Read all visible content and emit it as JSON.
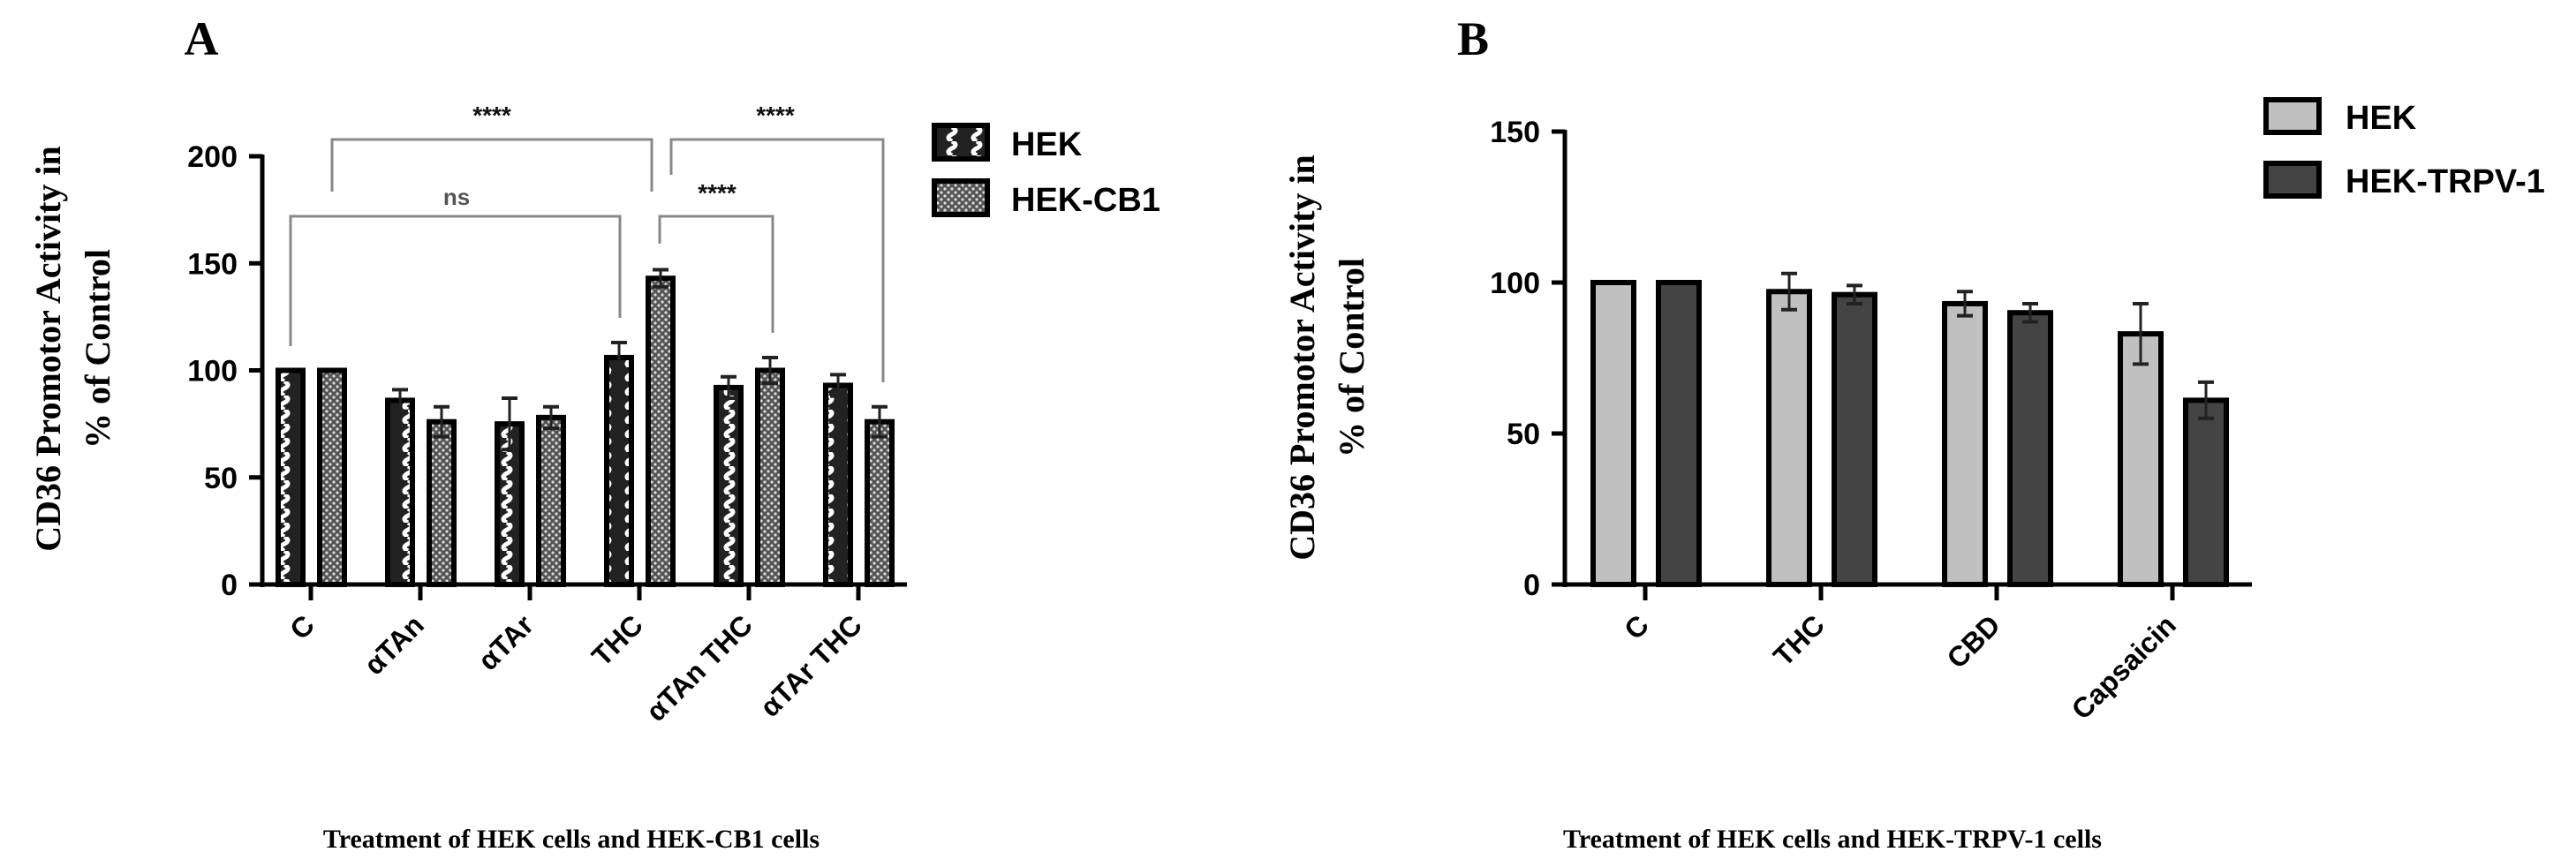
{
  "chart_data": [
    {
      "type": "bar",
      "panel_label": "A",
      "title": "",
      "ylabel_line1": "CD36 Promotor Activity in",
      "ylabel_line2": "% of Control",
      "xlabel": "Treatment of HEK cells and HEK-CB1 cells",
      "ylim": [
        0,
        200
      ],
      "yticks": [
        "0",
        "50",
        "100",
        "150",
        "200"
      ],
      "categories": [
        "C",
        "αTAn",
        "αTAr",
        "THC",
        "αTAn THC",
        "αTAr THC"
      ],
      "series": [
        {
          "name": "HEK",
          "values": [
            100,
            86,
            75,
            106,
            92,
            93
          ],
          "errors": [
            0,
            5,
            12,
            7,
            5,
            5
          ]
        },
        {
          "name": "HEK-CB1",
          "values": [
            100,
            76,
            78,
            143,
            100,
            76
          ],
          "errors": [
            0,
            7,
            5,
            4,
            6,
            7
          ]
        }
      ],
      "significance": [
        {
          "label": "****",
          "from": [
            0,
            1
          ],
          "to": [
            3,
            0
          ]
        },
        {
          "label": "ns",
          "from": [
            0,
            0
          ],
          "to": [
            3,
            0
          ]
        },
        {
          "label": "****",
          "from": [
            3,
            1
          ],
          "to": [
            5,
            1
          ]
        },
        {
          "label": "****",
          "from": [
            3,
            1
          ],
          "to": [
            4,
            1
          ]
        }
      ],
      "legend_position": "top-right",
      "grid": false
    },
    {
      "type": "bar",
      "panel_label": "B",
      "title": "",
      "ylabel_line1": "CD36 Promotor Activity in",
      "ylabel_line2": "% of Control",
      "xlabel": "Treatment of HEK cells and HEK-TRPV-1 cells",
      "ylim": [
        0,
        150
      ],
      "yticks": [
        "0",
        "50",
        "100",
        "150"
      ],
      "categories": [
        "C",
        "THC",
        "CBD",
        "Capsaicin"
      ],
      "series": [
        {
          "name": "HEK",
          "values": [
            100,
            97,
            93,
            83
          ],
          "errors": [
            0,
            6,
            4,
            10
          ],
          "color": "#c0c0c0"
        },
        {
          "name": "HEK-TRPV-1",
          "values": [
            100,
            96,
            90,
            61
          ],
          "errors": [
            0,
            3,
            3,
            6
          ],
          "color": "#444444"
        }
      ],
      "legend_position": "top-right",
      "grid": false
    }
  ]
}
